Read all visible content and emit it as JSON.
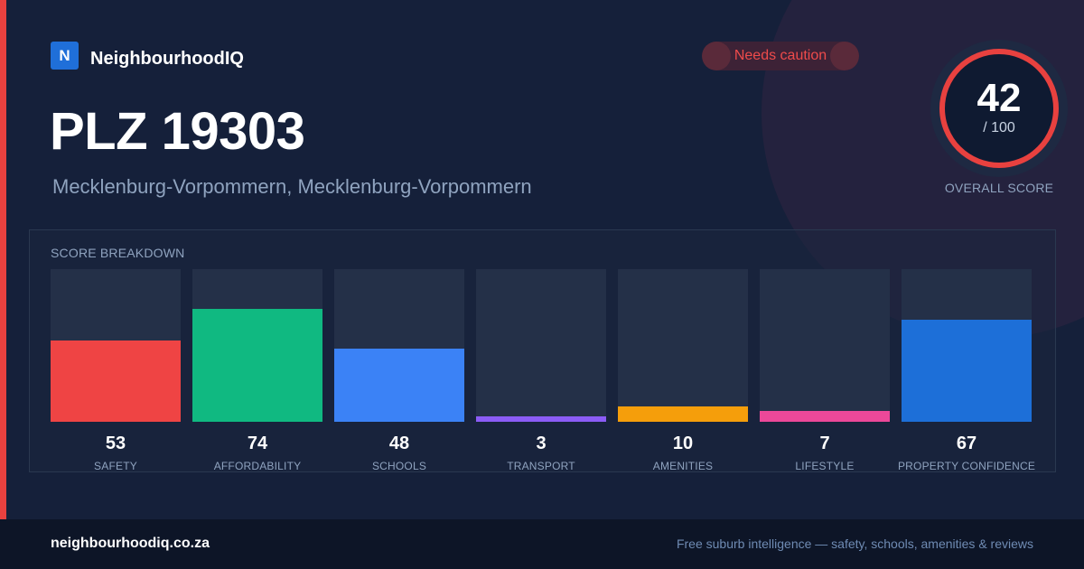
{
  "brand": {
    "logo_letter": "N",
    "name": "NeighbourhoodIQ"
  },
  "status_badge": {
    "label": "Needs caution",
    "color": "#ef4b4b"
  },
  "title": "PLZ 19303",
  "subtitle": "Mecklenburg-Vorpommern, Mecklenburg-Vorpommern",
  "overall": {
    "score": "42",
    "max": "/ 100",
    "label": "OVERALL SCORE",
    "value": 42,
    "ring_color": "#e8413f"
  },
  "breakdown": {
    "title": "SCORE BREAKDOWN",
    "items": [
      {
        "value": "53",
        "label": "SAFETY",
        "score": 53,
        "color": "#ef4444"
      },
      {
        "value": "74",
        "label": "AFFORDABILITY",
        "score": 74,
        "color": "#10b981"
      },
      {
        "value": "48",
        "label": "SCHOOLS",
        "score": 48,
        "color": "#3b82f6"
      },
      {
        "value": "3",
        "label": "TRANSPORT",
        "score": 3,
        "color": "#8b5cf6"
      },
      {
        "value": "10",
        "label": "AMENITIES",
        "score": 10,
        "color": "#f59e0b"
      },
      {
        "value": "7",
        "label": "LIFESTYLE",
        "score": 7,
        "color": "#ec4899"
      },
      {
        "value": "67",
        "label": "PROPERTY CONFIDENCE",
        "score": 67,
        "color": "#1d6fd8"
      }
    ]
  },
  "footer": {
    "domain": "neighbourhoodiq.co.za",
    "tagline": "Free suburb intelligence — safety, schools, amenities & reviews"
  }
}
